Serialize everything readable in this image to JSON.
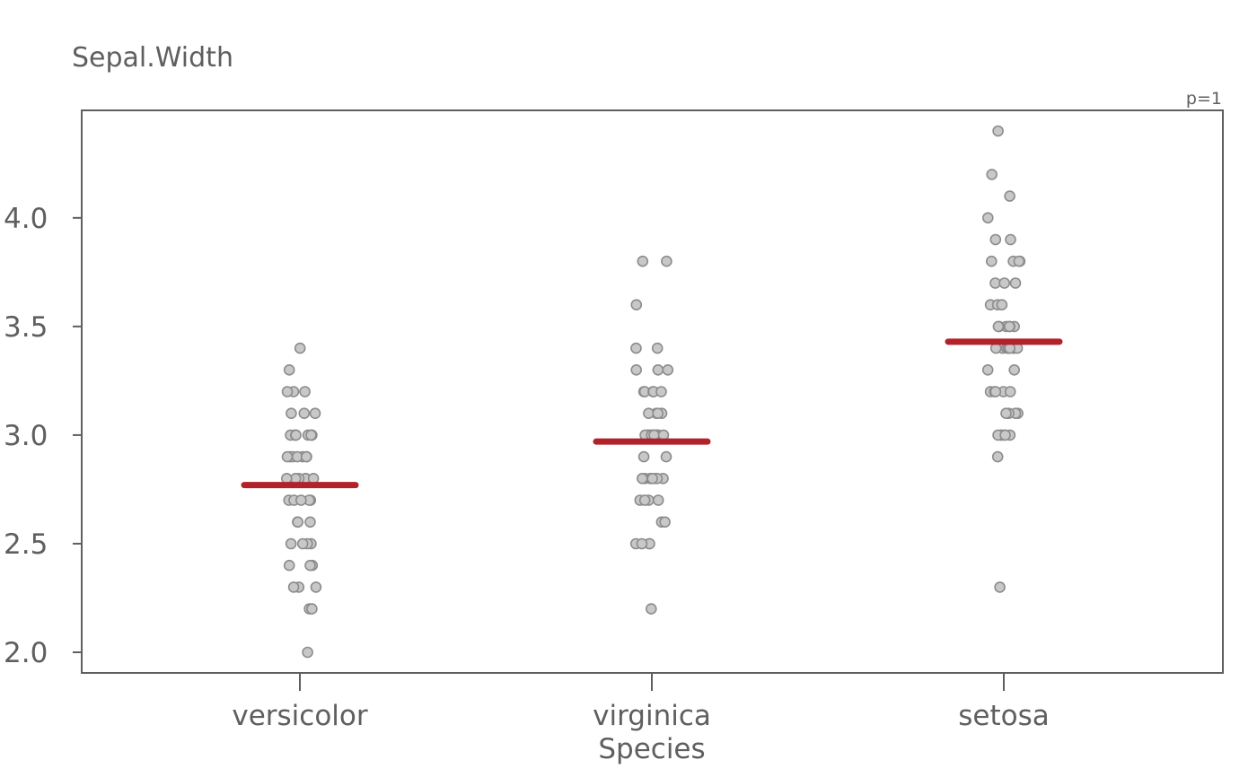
{
  "chart_data": {
    "type": "scatter",
    "title": "",
    "ylabel": "Sepal.Width",
    "xlabel": "Species",
    "annotation": "p=1",
    "categories": [
      "versicolor",
      "virginica",
      "setosa"
    ],
    "yticks": [
      2.0,
      2.5,
      3.0,
      3.5,
      4.0
    ],
    "ytick_labels": [
      "2.0",
      "2.5",
      "3.0",
      "3.5",
      "4.0"
    ],
    "ylim": [
      1.905,
      4.495
    ],
    "grid": false,
    "legend": "none",
    "colors": {
      "points_fill": "#c8c8c8",
      "points_stroke": "#8c8c8c",
      "mean_line": "#b2222a",
      "axis": "#5f5f5f"
    },
    "series": [
      {
        "category": "versicolor",
        "mean": 2.77,
        "values": [
          3.2,
          3.2,
          3.1,
          2.3,
          2.8,
          2.8,
          3.3,
          2.4,
          2.9,
          2.7,
          2.0,
          3.0,
          2.2,
          2.9,
          2.9,
          3.1,
          3.0,
          2.7,
          2.2,
          2.5,
          3.2,
          2.8,
          2.5,
          2.8,
          2.9,
          3.0,
          2.8,
          3.0,
          2.9,
          2.6,
          2.4,
          2.4,
          2.7,
          2.7,
          3.0,
          3.4,
          3.1,
          2.3,
          3.0,
          2.5,
          2.6,
          3.0,
          2.6,
          2.3,
          2.7,
          3.0,
          2.9,
          2.9,
          2.5,
          2.8
        ]
      },
      {
        "category": "virginica",
        "mean": 2.97,
        "values": [
          3.3,
          2.7,
          3.0,
          2.9,
          3.0,
          3.0,
          2.5,
          2.9,
          2.5,
          3.6,
          3.2,
          2.7,
          3.0,
          2.5,
          2.8,
          3.2,
          3.0,
          3.8,
          2.6,
          2.2,
          3.2,
          2.8,
          2.8,
          2.7,
          3.3,
          3.2,
          2.8,
          3.0,
          2.8,
          3.0,
          2.8,
          3.8,
          2.8,
          2.8,
          2.6,
          3.0,
          3.4,
          3.1,
          3.0,
          3.1,
          3.1,
          3.1,
          2.7,
          3.2,
          3.3,
          3.0,
          2.5,
          3.0,
          3.4,
          3.0
        ]
      },
      {
        "category": "setosa",
        "mean": 3.43,
        "values": [
          3.5,
          3.0,
          3.2,
          3.1,
          3.6,
          3.9,
          3.4,
          3.4,
          2.9,
          3.1,
          3.7,
          3.4,
          3.0,
          3.0,
          4.0,
          4.4,
          3.9,
          3.5,
          3.8,
          3.8,
          3.4,
          3.7,
          3.6,
          3.3,
          3.4,
          3.0,
          3.4,
          3.5,
          3.4,
          3.2,
          3.1,
          3.4,
          4.1,
          4.2,
          3.1,
          3.2,
          3.5,
          3.6,
          3.0,
          3.4,
          3.5,
          2.3,
          3.2,
          3.5,
          3.8,
          3.0,
          3.8,
          3.2,
          3.7,
          3.3
        ]
      }
    ]
  }
}
